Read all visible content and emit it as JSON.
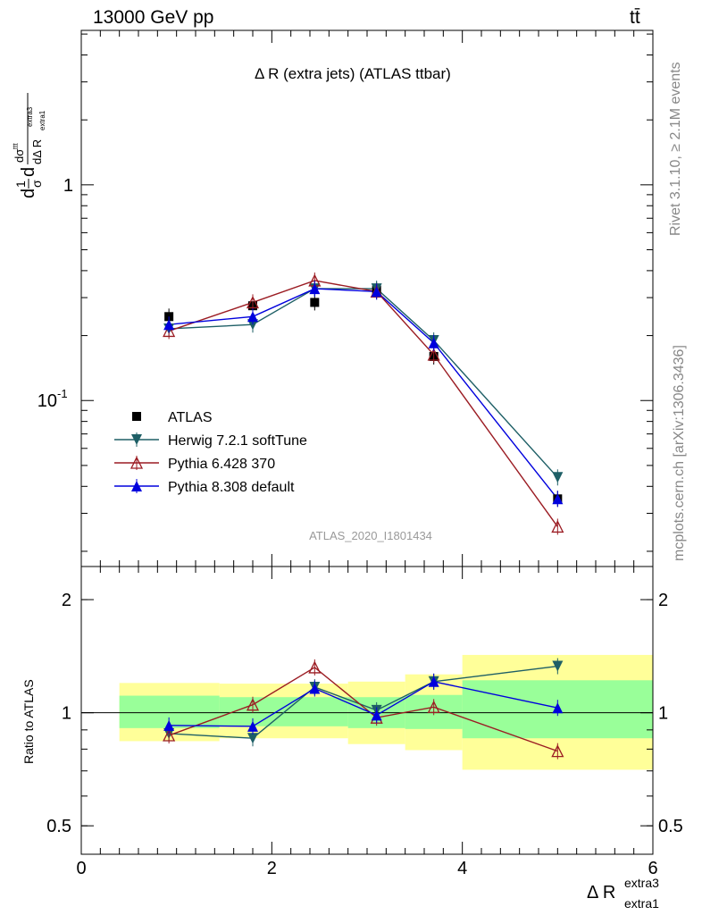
{
  "header": {
    "energy_label": "13000 GeV pp",
    "process_label": "tt̄"
  },
  "side_labels": {
    "rivet": "Rivet 3.1.10, ≥ 2.1M events",
    "mcplots": "mcplots.cern.ch [arXiv:1306.3436]"
  },
  "chart_data": [
    {
      "type": "line",
      "title": "Δ R (extra jets) (ATLAS ttbar)",
      "watermark": "ATLAS_2020_I1801434",
      "ylabel": "1/σ dσ^ttt / dΔ R extra1^extra3",
      "yscale": "log",
      "ylim": [
        0.017,
        5.2
      ],
      "xlim": [
        0,
        6
      ],
      "yticks": [
        {
          "v": 1,
          "label": "1"
        },
        {
          "v": 0.1,
          "label": "10^-1"
        }
      ],
      "series": [
        {
          "name": "ATLAS",
          "color": "#000000",
          "marker": "square",
          "x": [
            0.92,
            1.8,
            2.45,
            3.1,
            3.7,
            5.0
          ],
          "y": [
            0.245,
            0.275,
            0.285,
            0.325,
            0.16,
            0.035
          ]
        },
        {
          "name": "Herwig 7.2.1 softTune",
          "color": "#1e5f66",
          "marker": "triangle-down",
          "x": [
            0.92,
            1.8,
            2.45,
            3.1,
            3.7,
            5.0
          ],
          "y": [
            0.215,
            0.225,
            0.33,
            0.33,
            0.19,
            0.044
          ]
        },
        {
          "name": "Pythia 6.428 370",
          "color": "#9b1c23",
          "marker": "triangle-open",
          "x": [
            0.92,
            1.8,
            2.45,
            3.1,
            3.7,
            5.0
          ],
          "y": [
            0.21,
            0.285,
            0.36,
            0.32,
            0.163,
            0.026
          ]
        },
        {
          "name": "Pythia 8.308 default",
          "color": "#0000dd",
          "marker": "triangle-up",
          "x": [
            0.92,
            1.8,
            2.45,
            3.1,
            3.7,
            5.0
          ],
          "y": [
            0.225,
            0.245,
            0.33,
            0.32,
            0.185,
            0.035
          ]
        }
      ]
    },
    {
      "type": "line",
      "ylabel": "Ratio to ATLAS",
      "xlabel": "Δ R extra1^extra3",
      "yscale": "log",
      "ylim": [
        0.42,
        2.45
      ],
      "xlim": [
        0,
        6
      ],
      "yticks": [
        {
          "v": 2,
          "label": "2"
        },
        {
          "v": 1,
          "label": "1"
        },
        {
          "v": 0.5,
          "label": "0.5"
        }
      ],
      "xticks": [
        {
          "v": 0,
          "label": "0"
        },
        {
          "v": 2,
          "label": "2"
        },
        {
          "v": 4,
          "label": "4"
        },
        {
          "v": 6,
          "label": "6"
        }
      ],
      "bands": [
        {
          "x0": 0.4,
          "x1": 1.45,
          "yellow": [
            0.84,
            1.2
          ],
          "green": [
            0.91,
            1.11
          ]
        },
        {
          "x0": 1.45,
          "x1": 2.8,
          "yellow": [
            0.855,
            1.195
          ],
          "green": [
            0.92,
            1.1
          ]
        },
        {
          "x0": 2.8,
          "x1": 3.4,
          "yellow": [
            0.825,
            1.21
          ],
          "green": [
            0.91,
            1.1
          ]
        },
        {
          "x0": 3.4,
          "x1": 4.0,
          "yellow": [
            0.795,
            1.265
          ],
          "green": [
            0.905,
            1.115
          ]
        },
        {
          "x0": 4.0,
          "x1": 6.0,
          "yellow": [
            0.705,
            1.425
          ],
          "green": [
            0.855,
            1.22
          ]
        }
      ],
      "series": [
        {
          "name": "Herwig 7.2.1 softTune",
          "color": "#1e5f66",
          "marker": "triangle-down",
          "x": [
            0.92,
            1.8,
            2.45,
            3.1,
            3.7,
            5.0
          ],
          "y": [
            0.88,
            0.855,
            1.17,
            1.015,
            1.21,
            1.33
          ]
        },
        {
          "name": "Pythia 6.428 370",
          "color": "#9b1c23",
          "marker": "triangle-open",
          "x": [
            0.92,
            1.8,
            2.45,
            3.1,
            3.7,
            5.0
          ],
          "y": [
            0.87,
            1.05,
            1.32,
            0.97,
            1.035,
            0.79
          ]
        },
        {
          "name": "Pythia 8.308 default",
          "color": "#0000dd",
          "marker": "triangle-up",
          "x": [
            0.92,
            1.8,
            2.45,
            3.1,
            3.7,
            5.0
          ],
          "y": [
            0.925,
            0.92,
            1.16,
            0.985,
            1.21,
            1.03
          ]
        }
      ]
    }
  ]
}
